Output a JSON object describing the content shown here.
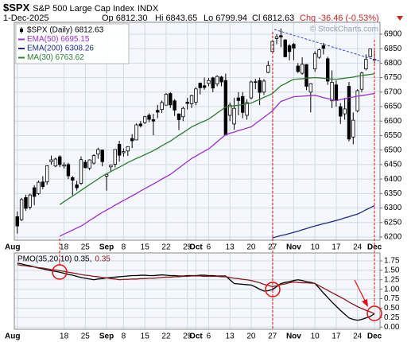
{
  "header": {
    "symbol": "$SPX",
    "name": "S&P 500 Large Cap Index",
    "exchange": "INDX",
    "date": "1-Dec-2025",
    "open": "Op 6812.30",
    "high": "Hi 6843.65",
    "low": "Lo 6799.94",
    "close": "Cl 6812.63",
    "change": "Chg -36.46 (-0.53%)",
    "watermark": "© StockCharts.com"
  },
  "chart_data": [
    {
      "type": "candlestick",
      "categories": [
        "Aug",
        null,
        null,
        null,
        null,
        null,
        null,
        null,
        null,
        null,
        null,
        "18",
        null,
        null,
        null,
        null,
        "25",
        null,
        null,
        null,
        null,
        "Sep",
        null,
        null,
        null,
        "8",
        null,
        null,
        null,
        null,
        "15",
        null,
        null,
        null,
        null,
        "22",
        null,
        null,
        null,
        null,
        "29",
        null,
        "Oct",
        null,
        null,
        "6",
        null,
        null,
        null,
        null,
        "13",
        null,
        null,
        null,
        null,
        "20",
        null,
        null,
        null,
        null,
        "27",
        null,
        null,
        null,
        null,
        "Nov",
        null,
        null,
        null,
        null,
        "10",
        null,
        null,
        null,
        null,
        "17",
        null,
        null,
        null,
        null,
        "24",
        null,
        null,
        null,
        "Dec"
      ],
      "series": [
        {
          "name": "$SPX (Daily) 6812.63",
          "color": "#000000",
          "open": [
            6270,
            6260,
            6336,
            6303,
            6370,
            6350,
            6390,
            6390,
            6460,
            6445,
            6477,
            6445,
            6450,
            6405,
            6380,
            6385,
            6458,
            6438,
            6455,
            6486,
            6500,
            6410,
            6442,
            6451,
            6520,
            6491,
            6497,
            6540,
            6535,
            6590,
            6595,
            6620,
            6605,
            6637,
            6640,
            6655,
            6695,
            6670,
            6625,
            6615,
            6665,
            6660,
            6665,
            6731,
            6722,
            6730,
            6749,
            6728,
            6752,
            6740,
            6620,
            6590,
            6680,
            6685,
            6620,
            6680,
            6736,
            6740,
            6700,
            6768,
            6840,
            6885,
            6895,
            6880,
            6860,
            6865,
            6790,
            6765,
            6795,
            6700,
            6780,
            6820,
            6860,
            6815,
            6670,
            6725,
            6650,
            6625,
            6720,
            6545,
            6635,
            6710,
            6780,
            6822,
            6812.3
          ],
          "high": [
            6288,
            6335,
            6346,
            6350,
            6379,
            6395,
            6410,
            6448,
            6481,
            6474,
            6482,
            6458,
            6456,
            6410,
            6394,
            6478,
            6466,
            6468,
            6486,
            6508,
            6502,
            6420,
            6450,
            6503,
            6532,
            6506,
            6513,
            6555,
            6592,
            6600,
            6618,
            6627,
            6625,
            6656,
            6671,
            6697,
            6700,
            6676,
            6626,
            6650,
            6680,
            6691,
            6717,
            6733,
            6750,
            6749,
            6753,
            6758,
            6756,
            6764,
            6664,
            6680,
            6700,
            6700,
            6675,
            6740,
            6746,
            6750,
            6745,
            6807,
            6877,
            6900,
            6920,
            6883,
            6866,
            6870,
            6800,
            6820,
            6797,
            6731,
            6841,
            6850,
            6870,
            6822,
            6775,
            6740,
            6662,
            6680,
            6735,
            6630,
            6710,
            6770,
            6830,
            6850,
            6843.65
          ],
          "low": [
            6212,
            6255,
            6290,
            6295,
            6310,
            6345,
            6365,
            6380,
            6450,
            6441,
            6441,
            6436,
            6400,
            6343,
            6360,
            6380,
            6437,
            6430,
            6450,
            6470,
            6444,
            6360,
            6425,
            6440,
            6460,
            6477,
            6480,
            6507,
            6535,
            6578,
            6590,
            6596,
            6551,
            6610,
            6628,
            6654,
            6645,
            6618,
            6569,
            6600,
            6640,
            6645,
            6655,
            6692,
            6708,
            6720,
            6700,
            6720,
            6720,
            6550,
            6600,
            6570,
            6620,
            6610,
            6605,
            6675,
            6710,
            6655,
            6690,
            6765,
            6838,
            6865,
            6855,
            6820,
            6810,
            6810,
            6766,
            6760,
            6707,
            6630,
            6770,
            6815,
            6830,
            6725,
            6645,
            6650,
            6590,
            6605,
            6530,
            6520,
            6630,
            6700,
            6775,
            6820,
            6799.94
          ],
          "close": [
            6238,
            6329,
            6299,
            6345,
            6340,
            6389,
            6374,
            6446,
            6466,
            6469,
            6450,
            6449,
            6411,
            6396,
            6370,
            6467,
            6439,
            6466,
            6481,
            6502,
            6460,
            6416,
            6448,
            6502,
            6482,
            6495,
            6512,
            6532,
            6587,
            6584,
            6615,
            6606,
            6600,
            6631,
            6664,
            6693,
            6656,
            6638,
            6605,
            6644,
            6661,
            6688,
            6711,
            6715,
            6716,
            6740,
            6714,
            6754,
            6735,
            6552,
            6655,
            6644,
            6671,
            6630,
            6664,
            6735,
            6735,
            6699,
            6738,
            6792,
            6875,
            6891,
            6890,
            6822,
            6840,
            6852,
            6771,
            6796,
            6720,
            6729,
            6832,
            6846,
            6851,
            6738,
            6734,
            6672,
            6617,
            6642,
            6538,
            6603,
            6705,
            6766,
            6813,
            6849,
            6812.63
          ]
        },
        {
          "name": "EMA(50) 6695.15",
          "color": "#9b30d0",
          "values": [
            null,
            null,
            null,
            null,
            null,
            null,
            null,
            null,
            null,
            null,
            6203,
            6210,
            6217,
            6224,
            6231,
            6238,
            6247,
            6257,
            6266,
            6276,
            6285,
            6293,
            6301,
            6310,
            6318,
            6326,
            6334,
            6342,
            6350,
            6359,
            6367,
            6375,
            6383,
            6391,
            6400,
            6408,
            6416,
            6427,
            6438,
            6449,
            6460,
            6471,
            6479,
            6488,
            6496,
            6504,
            6516,
            6529,
            6541,
            6553,
            6558,
            6562,
            6567,
            6571,
            6576,
            6580,
            6591,
            6602,
            6613,
            6624,
            6635,
            6652,
            6668,
            6673,
            6679,
            6684,
            6685,
            6686,
            6687,
            6688,
            6689,
            6685,
            6681,
            6678,
            6674,
            6670,
            6674,
            6677,
            6681,
            6683,
            6686,
            6688,
            6690,
            6693,
            6695.15
          ]
        },
        {
          "name": "EMA(200) 6308.26",
          "color": "#1c2a8a",
          "values": [
            null,
            null,
            null,
            null,
            null,
            null,
            null,
            null,
            null,
            null,
            null,
            null,
            null,
            null,
            null,
            null,
            null,
            null,
            null,
            null,
            null,
            null,
            null,
            null,
            null,
            null,
            null,
            null,
            null,
            null,
            null,
            null,
            null,
            null,
            null,
            null,
            null,
            null,
            null,
            null,
            null,
            null,
            null,
            null,
            null,
            null,
            null,
            null,
            null,
            null,
            null,
            null,
            null,
            null,
            null,
            null,
            null,
            null,
            null,
            null,
            6197,
            6201,
            6205,
            6208,
            6212,
            6216,
            6220,
            6225,
            6229,
            6234,
            6238,
            6242,
            6246,
            6249,
            6253,
            6257,
            6261,
            6266,
            6270,
            6275,
            6279,
            6286,
            6294,
            6301,
            6308.26
          ]
        },
        {
          "name": "MA(30) 6763.62",
          "color": "#2e7d32",
          "values": [
            null,
            null,
            null,
            null,
            null,
            null,
            null,
            null,
            null,
            null,
            6312,
            6322,
            6332,
            6341,
            6351,
            6361,
            6371,
            6381,
            6390,
            6400,
            6410,
            6418,
            6426,
            6434,
            6441,
            6449,
            6457,
            6464,
            6471,
            6477,
            6484,
            6491,
            6498,
            6506,
            6515,
            6523,
            6531,
            6541,
            6551,
            6560,
            6570,
            6580,
            6587,
            6594,
            6600,
            6607,
            6617,
            6628,
            6638,
            6648,
            6650,
            6653,
            6655,
            6657,
            6660,
            6662,
            6669,
            6675,
            6682,
            6688,
            6695,
            6709,
            6722,
            6729,
            6737,
            6744,
            6745,
            6746,
            6748,
            6749,
            6750,
            6749,
            6748,
            6746,
            6745,
            6744,
            6746,
            6748,
            6750,
            6752,
            6755,
            6757,
            6759,
            6761,
            6763.62
          ]
        }
      ],
      "ylim": [
        6189,
        6941
      ],
      "yticks": [
        6200,
        6250,
        6300,
        6350,
        6400,
        6450,
        6500,
        6550,
        6600,
        6650,
        6700,
        6750,
        6800,
        6850,
        6900
      ],
      "grid": true
    },
    {
      "type": "line",
      "categories": [
        "Aug",
        null,
        null,
        null,
        null,
        null,
        null,
        null,
        null,
        null,
        null,
        "18",
        null,
        null,
        null,
        null,
        "25",
        null,
        null,
        null,
        null,
        "Sep",
        null,
        null,
        null,
        "8",
        null,
        null,
        null,
        null,
        "15",
        null,
        null,
        null,
        null,
        "22",
        null,
        null,
        null,
        null,
        "29",
        null,
        "Oct",
        null,
        null,
        "6",
        null,
        null,
        null,
        null,
        "13",
        null,
        null,
        null,
        null,
        "20",
        null,
        null,
        null,
        null,
        "27",
        null,
        null,
        null,
        null,
        "Nov",
        null,
        null,
        null,
        null,
        "10",
        null,
        null,
        null,
        null,
        "17",
        null,
        null,
        null,
        null,
        "24",
        null,
        null,
        null,
        "Dec"
      ],
      "series": [
        {
          "name": "PMO(35,20,10) 0.35,",
          "color": "#000000",
          "values": [
            1.69,
            1.67,
            1.64,
            1.62,
            1.59,
            1.56,
            1.54,
            1.51,
            1.49,
            1.47,
            1.45,
            1.42,
            1.39,
            1.37,
            1.34,
            1.31,
            1.29,
            1.27,
            1.25,
            1.27,
            1.28,
            1.3,
            1.31,
            1.32,
            1.33,
            1.34,
            1.35,
            1.36,
            1.36,
            1.37,
            1.37,
            1.36,
            1.36,
            1.37,
            1.38,
            1.37,
            1.36,
            1.36,
            1.35,
            1.35,
            1.36,
            1.36,
            1.36,
            1.37,
            1.37,
            1.36,
            1.36,
            1.35,
            1.35,
            1.35,
            1.25,
            1.15,
            1.14,
            1.13,
            1.12,
            1.11,
            1.06,
            1.0,
            0.95,
            0.96,
            0.99,
            1.07,
            1.15,
            1.18,
            1.2,
            1.23,
            1.25,
            1.23,
            1.2,
            1.18,
            1.15,
            1.03,
            0.9,
            0.78,
            0.66,
            0.55,
            0.44,
            0.34,
            0.24,
            0.2,
            0.18,
            0.2,
            0.24,
            0.28,
            0.35
          ]
        },
        {
          "name": "0.35",
          "color": "#8b1a1a",
          "values": [
            1.65,
            1.63,
            1.62,
            1.6,
            1.59,
            1.57,
            1.56,
            1.54,
            1.52,
            1.51,
            1.49,
            1.47,
            1.45,
            1.43,
            1.41,
            1.39,
            1.37,
            1.36,
            1.34,
            1.33,
            1.31,
            1.3,
            1.28,
            1.27,
            1.25,
            1.26,
            1.26,
            1.27,
            1.27,
            1.28,
            1.28,
            1.29,
            1.29,
            1.3,
            1.31,
            1.32,
            1.32,
            1.33,
            1.33,
            1.34,
            1.34,
            1.35,
            1.35,
            1.35,
            1.34,
            1.34,
            1.34,
            1.34,
            1.33,
            1.33,
            1.31,
            1.29,
            1.28,
            1.26,
            1.25,
            1.23,
            1.2,
            1.17,
            1.13,
            1.1,
            1.07,
            1.09,
            1.12,
            1.14,
            1.17,
            1.19,
            1.18,
            1.17,
            1.17,
            1.16,
            1.15,
            1.09,
            1.03,
            0.97,
            0.91,
            0.85,
            0.79,
            0.73,
            0.66,
            0.6,
            0.54,
            0.49,
            0.44,
            0.4,
            0.35
          ]
        }
      ],
      "ylim": [
        -0.06,
        1.96
      ],
      "yticks": [
        {
          "value": 0,
          "label": "0.00"
        },
        {
          "value": 0.25,
          "label": "0.25"
        },
        {
          "value": 0.5,
          "label": "0.50"
        },
        {
          "value": 0.75,
          "label": "0.75"
        },
        {
          "value": 1,
          "label": "1.00"
        },
        {
          "value": 1.25,
          "label": "1.25"
        },
        {
          "value": 1.5,
          "label": "1.50"
        },
        {
          "value": 1.75,
          "label": "1.75"
        }
      ],
      "grid": true
    }
  ]
}
